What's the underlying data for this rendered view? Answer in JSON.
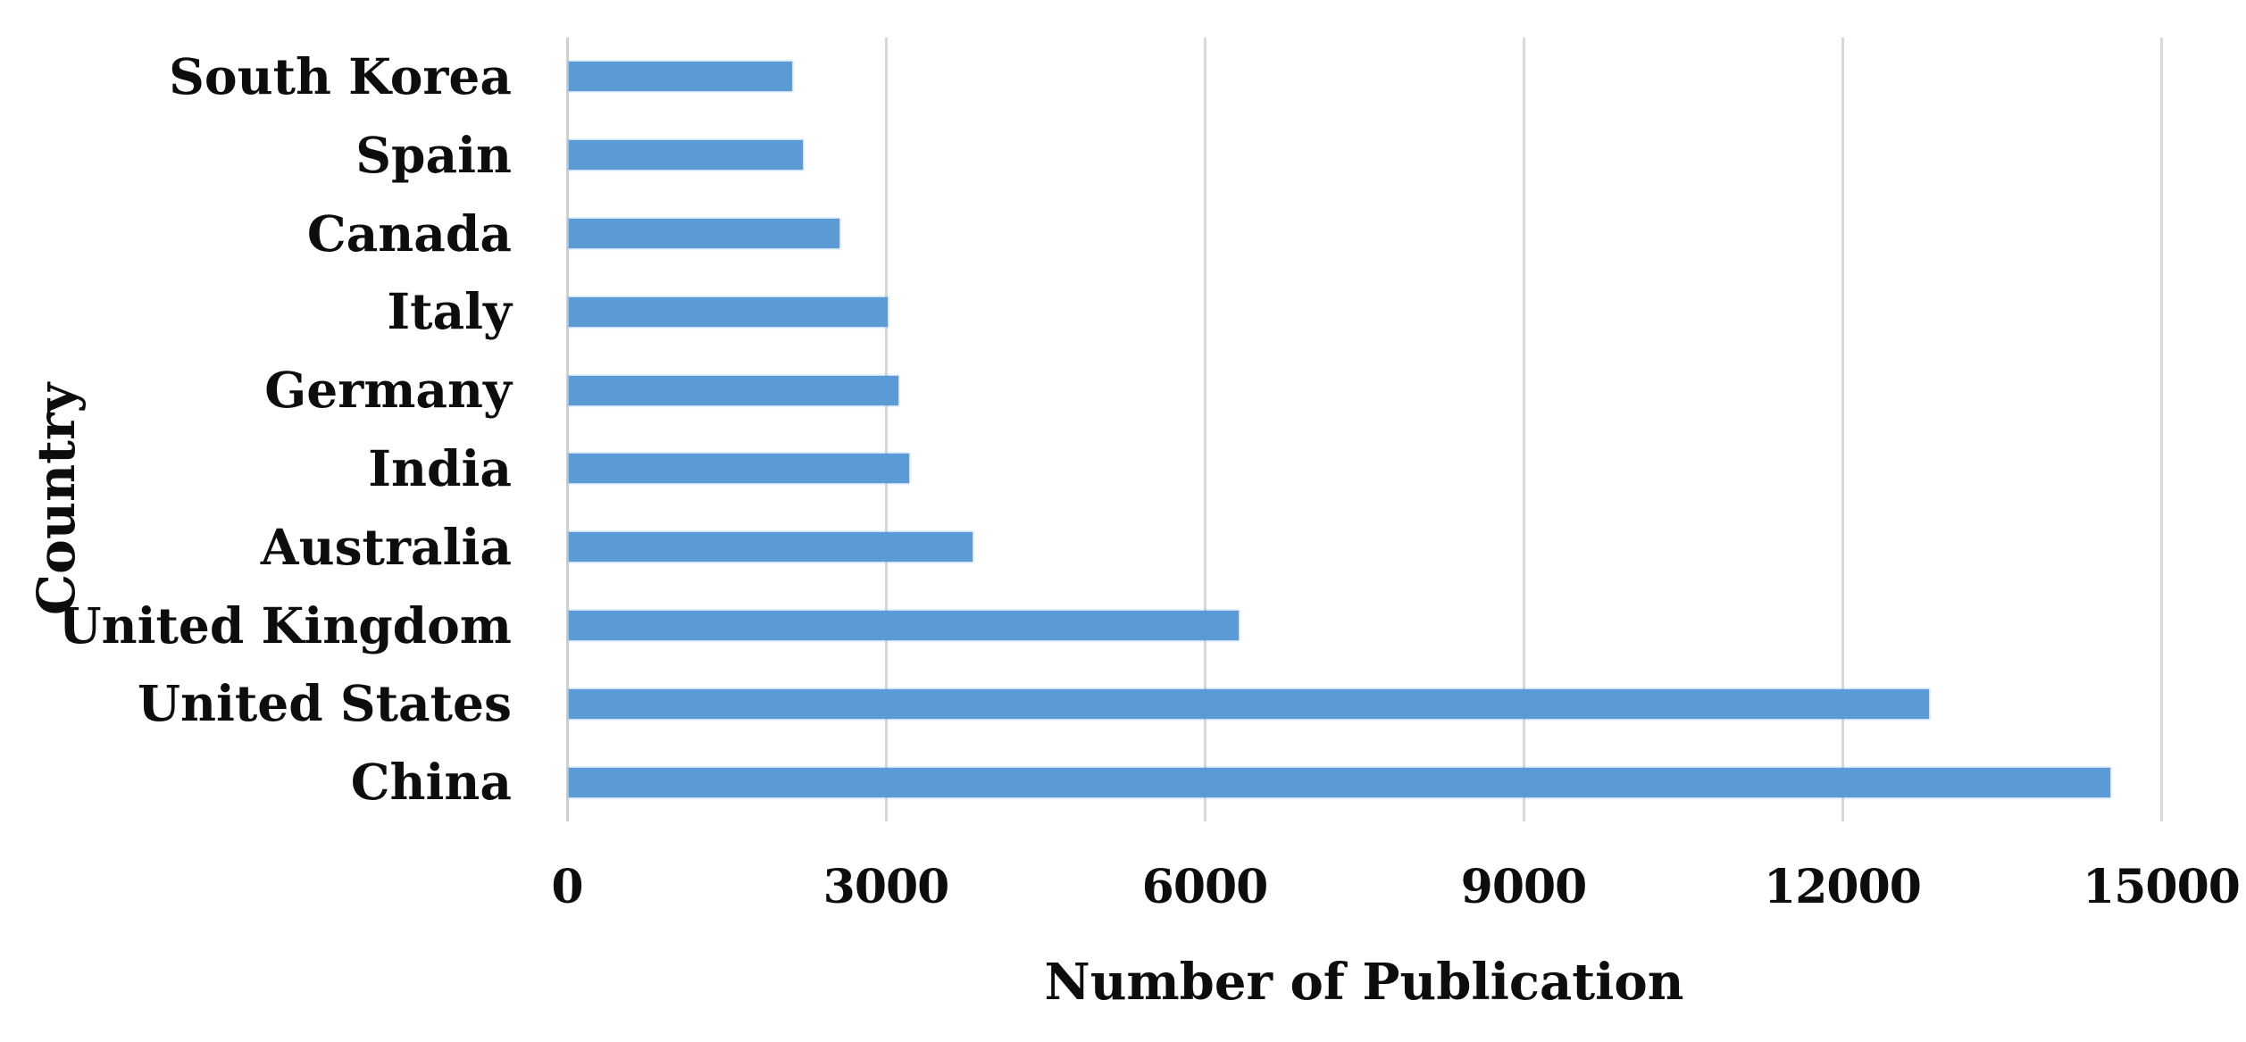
{
  "chart_data": {
    "type": "bar",
    "orientation": "horizontal",
    "title": "",
    "xlabel": "Number of Publication",
    "ylabel": "Country",
    "categories_top_to_bottom": [
      "South Korea",
      "Spain",
      "Canada",
      "Italy",
      "Germany",
      "India",
      "Australia",
      "United Kingdom",
      "United States",
      "China"
    ],
    "values": [
      2100,
      2200,
      2550,
      3000,
      3100,
      3200,
      3800,
      6300,
      12800,
      14500
    ],
    "xlim": [
      0,
      15000
    ],
    "x_ticks": [
      0,
      3000,
      6000,
      9000,
      12000,
      15000
    ],
    "x_tick_labels": [
      "0",
      "3000",
      "6000",
      "9000",
      "12000",
      "15000"
    ],
    "grid": true,
    "legend": false,
    "colors": {
      "bar_fill": "#5b9bd5",
      "gridline": "#d9d9d9",
      "axis_line": "#cfcfcf",
      "text": "#0d0d0d",
      "background": "#ffffff"
    }
  }
}
